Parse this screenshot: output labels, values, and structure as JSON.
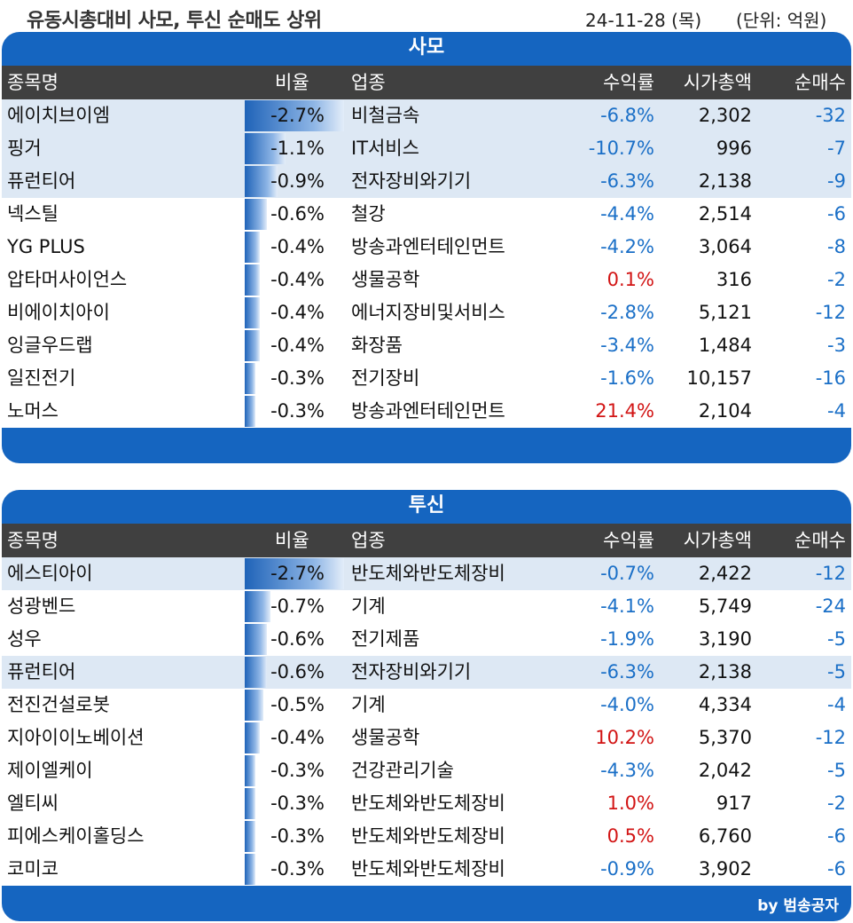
{
  "header": {
    "title": "유동시총대비 사모, 투신 순매도 상위",
    "date": "24-11-28 (목)",
    "unit": "(단위: 억원)"
  },
  "columns": {
    "name": "종목명",
    "ratio": "비율",
    "sector": "업종",
    "return": "수익률",
    "cap": "시가총액",
    "net": "순매수"
  },
  "colors": {
    "brand_blue": "#1565c0",
    "header_gray": "#404040",
    "highlight_row": "#dde8f4",
    "negative": "#1a6fc7",
    "positive": "#d21414"
  },
  "sections": [
    {
      "title": "사모",
      "rows": [
        {
          "name": "에이치브이엠",
          "ratio": "-2.7%",
          "ratio_value": 2.7,
          "sector": "비철금속",
          "return": "-6.8%",
          "cap": "2,302",
          "net": "-32",
          "highlight": true
        },
        {
          "name": "핑거",
          "ratio": "-1.1%",
          "ratio_value": 1.1,
          "sector": "IT서비스",
          "return": "-10.7%",
          "cap": "996",
          "net": "-7",
          "highlight": true
        },
        {
          "name": "퓨런티어",
          "ratio": "-0.9%",
          "ratio_value": 0.9,
          "sector": "전자장비와기기",
          "return": "-6.3%",
          "cap": "2,138",
          "net": "-9",
          "highlight": true
        },
        {
          "name": "넥스틸",
          "ratio": "-0.6%",
          "ratio_value": 0.6,
          "sector": "철강",
          "return": "-4.4%",
          "cap": "2,514",
          "net": "-6",
          "highlight": false
        },
        {
          "name": "YG PLUS",
          "ratio": "-0.4%",
          "ratio_value": 0.4,
          "sector": "방송과엔터테인먼트",
          "return": "-4.2%",
          "cap": "3,064",
          "net": "-8",
          "highlight": false
        },
        {
          "name": "압타머사이언스",
          "ratio": "-0.4%",
          "ratio_value": 0.4,
          "sector": "생물공학",
          "return": "0.1%",
          "cap": "316",
          "net": "-2",
          "highlight": false
        },
        {
          "name": "비에이치아이",
          "ratio": "-0.4%",
          "ratio_value": 0.4,
          "sector": "에너지장비및서비스",
          "return": "-2.8%",
          "cap": "5,121",
          "net": "-12",
          "highlight": false
        },
        {
          "name": "잉글우드랩",
          "ratio": "-0.4%",
          "ratio_value": 0.4,
          "sector": "화장품",
          "return": "-3.4%",
          "cap": "1,484",
          "net": "-3",
          "highlight": false
        },
        {
          "name": "일진전기",
          "ratio": "-0.3%",
          "ratio_value": 0.3,
          "sector": "전기장비",
          "return": "-1.6%",
          "cap": "10,157",
          "net": "-16",
          "highlight": false
        },
        {
          "name": "노머스",
          "ratio": "-0.3%",
          "ratio_value": 0.3,
          "sector": "방송과엔터테인먼트",
          "return": "21.4%",
          "cap": "2,104",
          "net": "-4",
          "highlight": false
        }
      ]
    },
    {
      "title": "투신",
      "rows": [
        {
          "name": "에스티아이",
          "ratio": "-2.7%",
          "ratio_value": 2.7,
          "sector": "반도체와반도체장비",
          "return": "-0.7%",
          "cap": "2,422",
          "net": "-12",
          "highlight": true
        },
        {
          "name": "성광벤드",
          "ratio": "-0.7%",
          "ratio_value": 0.7,
          "sector": "기계",
          "return": "-4.1%",
          "cap": "5,749",
          "net": "-24",
          "highlight": false
        },
        {
          "name": "성우",
          "ratio": "-0.6%",
          "ratio_value": 0.6,
          "sector": "전기제품",
          "return": "-1.9%",
          "cap": "3,190",
          "net": "-5",
          "highlight": false
        },
        {
          "name": "퓨런티어",
          "ratio": "-0.6%",
          "ratio_value": 0.6,
          "sector": "전자장비와기기",
          "return": "-6.3%",
          "cap": "2,138",
          "net": "-5",
          "highlight": true
        },
        {
          "name": "전진건설로봇",
          "ratio": "-0.5%",
          "ratio_value": 0.5,
          "sector": "기계",
          "return": "-4.0%",
          "cap": "4,334",
          "net": "-4",
          "highlight": false
        },
        {
          "name": "지아이이노베이션",
          "ratio": "-0.4%",
          "ratio_value": 0.4,
          "sector": "생물공학",
          "return": "10.2%",
          "cap": "5,370",
          "net": "-12",
          "highlight": false
        },
        {
          "name": "제이엘케이",
          "ratio": "-0.3%",
          "ratio_value": 0.3,
          "sector": "건강관리기술",
          "return": "-4.3%",
          "cap": "2,042",
          "net": "-5",
          "highlight": false
        },
        {
          "name": "엘티씨",
          "ratio": "-0.3%",
          "ratio_value": 0.3,
          "sector": "반도체와반도체장비",
          "return": "1.0%",
          "cap": "917",
          "net": "-2",
          "highlight": false
        },
        {
          "name": "피에스케이홀딩스",
          "ratio": "-0.3%",
          "ratio_value": 0.3,
          "sector": "반도체와반도체장비",
          "return": "0.5%",
          "cap": "6,760",
          "net": "-6",
          "highlight": false
        },
        {
          "name": "코미코",
          "ratio": "-0.3%",
          "ratio_value": 0.3,
          "sector": "반도체와반도체장비",
          "return": "-0.9%",
          "cap": "3,902",
          "net": "-6",
          "highlight": false
        }
      ]
    }
  ],
  "credit": "by 범송공자"
}
